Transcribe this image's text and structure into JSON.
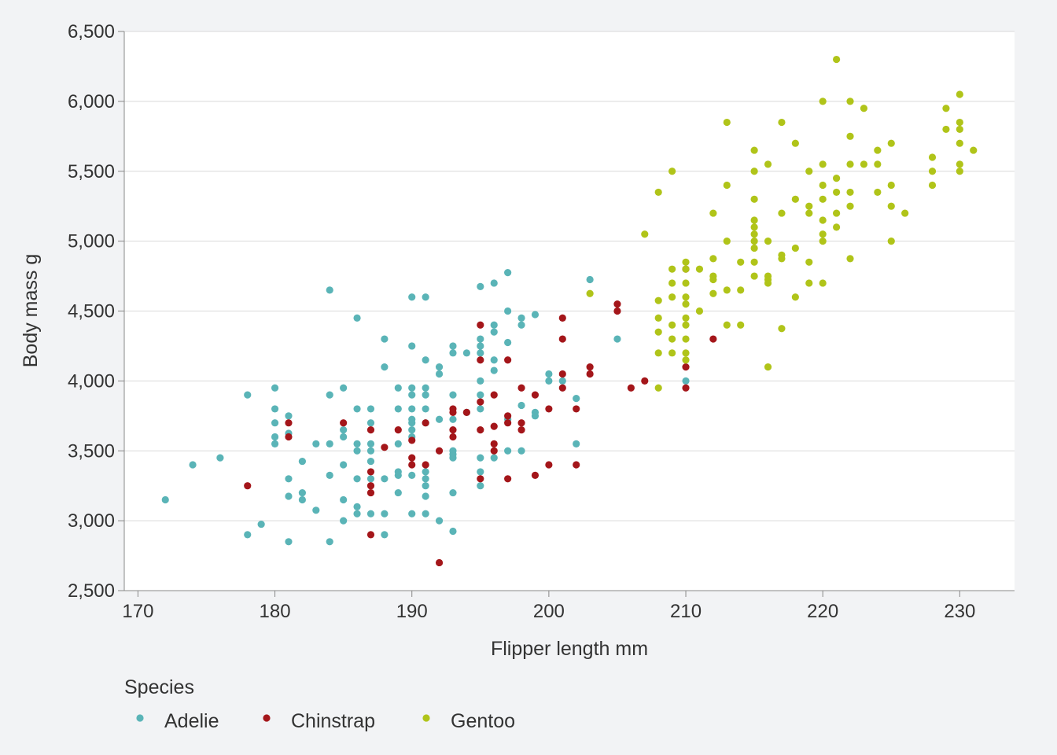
{
  "chart_data": {
    "type": "scatter",
    "xlabel": "Flipper length mm",
    "ylabel": "Body mass g",
    "xlim": [
      169,
      234
    ],
    "ylim": [
      2500,
      6500
    ],
    "x_ticks": [
      170,
      180,
      190,
      200,
      210,
      220,
      230
    ],
    "x_tick_labels": [
      "170",
      "180",
      "190",
      "200",
      "210",
      "220",
      "230"
    ],
    "y_ticks": [
      2500,
      3000,
      3500,
      4000,
      4500,
      5000,
      5500,
      6000,
      6500
    ],
    "y_tick_labels": [
      "2,500",
      "3,000",
      "3,500",
      "4,000",
      "4,500",
      "5,000",
      "5,500",
      "6,000",
      "6,500"
    ],
    "grid": "horizontal",
    "legend": {
      "title": "Species",
      "placement": "bottom-left"
    },
    "series": [
      {
        "name": "Adelie",
        "color": "#5ab4b7",
        "points": [
          [
            172,
            3150
          ],
          [
            174,
            3400
          ],
          [
            176,
            3450
          ],
          [
            178,
            3900
          ],
          [
            178,
            2900
          ],
          [
            179,
            2975
          ],
          [
            180,
            3950
          ],
          [
            180,
            3800
          ],
          [
            180,
            3700
          ],
          [
            180,
            3600
          ],
          [
            180,
            3550
          ],
          [
            181,
            3750
          ],
          [
            181,
            3625
          ],
          [
            181,
            3300
          ],
          [
            181,
            3175
          ],
          [
            181,
            2850
          ],
          [
            182,
            3425
          ],
          [
            182,
            3200
          ],
          [
            182,
            3150
          ],
          [
            183,
            3550
          ],
          [
            183,
            3075
          ],
          [
            184,
            4650
          ],
          [
            184,
            3900
          ],
          [
            184,
            3550
          ],
          [
            184,
            3325
          ],
          [
            184,
            2850
          ],
          [
            185,
            3950
          ],
          [
            185,
            3650
          ],
          [
            185,
            3600
          ],
          [
            185,
            3400
          ],
          [
            185,
            3150
          ],
          [
            185,
            3000
          ],
          [
            186,
            4450
          ],
          [
            186,
            3800
          ],
          [
            186,
            3550
          ],
          [
            186,
            3500
          ],
          [
            186,
            3300
          ],
          [
            186,
            3100
          ],
          [
            186,
            3050
          ],
          [
            187,
            3800
          ],
          [
            187,
            3700
          ],
          [
            187,
            3550
          ],
          [
            187,
            3500
          ],
          [
            187,
            3425
          ],
          [
            187,
            3300
          ],
          [
            187,
            3050
          ],
          [
            188,
            4300
          ],
          [
            188,
            4100
          ],
          [
            188,
            3300
          ],
          [
            188,
            3050
          ],
          [
            188,
            2900
          ],
          [
            189,
            3950
          ],
          [
            189,
            3800
          ],
          [
            189,
            3550
          ],
          [
            189,
            3350
          ],
          [
            189,
            3325
          ],
          [
            189,
            3200
          ],
          [
            190,
            4600
          ],
          [
            190,
            4250
          ],
          [
            190,
            3950
          ],
          [
            190,
            3900
          ],
          [
            190,
            3800
          ],
          [
            190,
            3725
          ],
          [
            190,
            3700
          ],
          [
            190,
            3650
          ],
          [
            190,
            3600
          ],
          [
            190,
            3325
          ],
          [
            190,
            3050
          ],
          [
            191,
            4600
          ],
          [
            191,
            4150
          ],
          [
            191,
            3950
          ],
          [
            191,
            3900
          ],
          [
            191,
            3800
          ],
          [
            191,
            3700
          ],
          [
            191,
            3350
          ],
          [
            191,
            3300
          ],
          [
            191,
            3250
          ],
          [
            191,
            3175
          ],
          [
            191,
            3050
          ],
          [
            192,
            4100
          ],
          [
            192,
            4050
          ],
          [
            192,
            3725
          ],
          [
            192,
            3000
          ],
          [
            193,
            4250
          ],
          [
            193,
            4200
          ],
          [
            193,
            3900
          ],
          [
            193,
            3725
          ],
          [
            193,
            3500
          ],
          [
            193,
            3475
          ],
          [
            193,
            3450
          ],
          [
            193,
            3200
          ],
          [
            193,
            2925
          ],
          [
            194,
            4200
          ],
          [
            194,
            3775
          ],
          [
            195,
            4675
          ],
          [
            195,
            4300
          ],
          [
            195,
            4250
          ],
          [
            195,
            4200
          ],
          [
            195,
            4000
          ],
          [
            195,
            3900
          ],
          [
            195,
            3800
          ],
          [
            195,
            3450
          ],
          [
            195,
            3350
          ],
          [
            195,
            3250
          ],
          [
            196,
            4700
          ],
          [
            196,
            4400
          ],
          [
            196,
            4350
          ],
          [
            196,
            4150
          ],
          [
            196,
            4075
          ],
          [
            196,
            3450
          ],
          [
            197,
            4775
          ],
          [
            197,
            4500
          ],
          [
            197,
            4275
          ],
          [
            197,
            3725
          ],
          [
            197,
            3500
          ],
          [
            198,
            4450
          ],
          [
            198,
            4400
          ],
          [
            198,
            3825
          ],
          [
            198,
            3500
          ],
          [
            199,
            4475
          ],
          [
            199,
            3775
          ],
          [
            199,
            3750
          ],
          [
            200,
            4050
          ],
          [
            200,
            4000
          ],
          [
            201,
            4000
          ],
          [
            202,
            3875
          ],
          [
            202,
            3550
          ],
          [
            203,
            4725
          ],
          [
            205,
            4300
          ],
          [
            210,
            4000
          ]
        ]
      },
      {
        "name": "Chinstrap",
        "color": "#a4161a",
        "points": [
          [
            178,
            3250
          ],
          [
            181,
            3700
          ],
          [
            181,
            3600
          ],
          [
            185,
            3700
          ],
          [
            187,
            3650
          ],
          [
            187,
            3350
          ],
          [
            187,
            3250
          ],
          [
            187,
            3200
          ],
          [
            187,
            2900
          ],
          [
            188,
            3525
          ],
          [
            189,
            3650
          ],
          [
            190,
            3575
          ],
          [
            190,
            3450
          ],
          [
            190,
            3400
          ],
          [
            191,
            3700
          ],
          [
            191,
            3400
          ],
          [
            192,
            3500
          ],
          [
            192,
            2700
          ],
          [
            193,
            3800
          ],
          [
            193,
            3775
          ],
          [
            193,
            3650
          ],
          [
            193,
            3600
          ],
          [
            194,
            3775
          ],
          [
            195,
            4400
          ],
          [
            195,
            4150
          ],
          [
            195,
            3850
          ],
          [
            195,
            3650
          ],
          [
            195,
            3300
          ],
          [
            196,
            3900
          ],
          [
            196,
            3675
          ],
          [
            196,
            3550
          ],
          [
            196,
            3500
          ],
          [
            197,
            4150
          ],
          [
            197,
            3750
          ],
          [
            197,
            3700
          ],
          [
            197,
            3300
          ],
          [
            198,
            3950
          ],
          [
            198,
            3700
          ],
          [
            198,
            3650
          ],
          [
            199,
            3900
          ],
          [
            199,
            3325
          ],
          [
            200,
            3800
          ],
          [
            200,
            3400
          ],
          [
            201,
            4450
          ],
          [
            201,
            4300
          ],
          [
            201,
            4050
          ],
          [
            201,
            3950
          ],
          [
            202,
            3800
          ],
          [
            202,
            3400
          ],
          [
            203,
            4100
          ],
          [
            203,
            4050
          ],
          [
            205,
            4550
          ],
          [
            205,
            4500
          ],
          [
            206,
            3950
          ],
          [
            207,
            4000
          ],
          [
            210,
            4800
          ],
          [
            210,
            4100
          ],
          [
            210,
            3950
          ],
          [
            212,
            4300
          ]
        ]
      },
      {
        "name": "Gentoo",
        "color": "#b0c419",
        "points": [
          [
            203,
            4625
          ],
          [
            207,
            5050
          ],
          [
            208,
            5350
          ],
          [
            208,
            4575
          ],
          [
            208,
            4450
          ],
          [
            208,
            4350
          ],
          [
            208,
            4200
          ],
          [
            208,
            3950
          ],
          [
            209,
            5500
          ],
          [
            209,
            4800
          ],
          [
            209,
            4700
          ],
          [
            209,
            4600
          ],
          [
            209,
            4400
          ],
          [
            209,
            4300
          ],
          [
            209,
            4200
          ],
          [
            210,
            4850
          ],
          [
            210,
            4800
          ],
          [
            210,
            4700
          ],
          [
            210,
            4600
          ],
          [
            210,
            4550
          ],
          [
            210,
            4450
          ],
          [
            210,
            4400
          ],
          [
            210,
            4300
          ],
          [
            210,
            4200
          ],
          [
            210,
            4150
          ],
          [
            211,
            4800
          ],
          [
            211,
            4500
          ],
          [
            212,
            5200
          ],
          [
            212,
            4875
          ],
          [
            212,
            4750
          ],
          [
            212,
            4725
          ],
          [
            212,
            4625
          ],
          [
            213,
            5850
          ],
          [
            213,
            5400
          ],
          [
            213,
            5000
          ],
          [
            213,
            4650
          ],
          [
            213,
            4400
          ],
          [
            214,
            4850
          ],
          [
            214,
            4650
          ],
          [
            214,
            4400
          ],
          [
            215,
            5650
          ],
          [
            215,
            5500
          ],
          [
            215,
            5300
          ],
          [
            215,
            5150
          ],
          [
            215,
            5100
          ],
          [
            215,
            5050
          ],
          [
            215,
            5000
          ],
          [
            215,
            4950
          ],
          [
            215,
            4850
          ],
          [
            215,
            4750
          ],
          [
            216,
            5550
          ],
          [
            216,
            5000
          ],
          [
            216,
            4750
          ],
          [
            216,
            4725
          ],
          [
            216,
            4700
          ],
          [
            216,
            4100
          ],
          [
            217,
            5850
          ],
          [
            217,
            5200
          ],
          [
            217,
            4900
          ],
          [
            217,
            4875
          ],
          [
            217,
            4375
          ],
          [
            218,
            5700
          ],
          [
            218,
            5300
          ],
          [
            218,
            4950
          ],
          [
            218,
            4600
          ],
          [
            219,
            5500
          ],
          [
            219,
            5250
          ],
          [
            219,
            5200
          ],
          [
            219,
            4850
          ],
          [
            219,
            4700
          ],
          [
            220,
            6000
          ],
          [
            220,
            5550
          ],
          [
            220,
            5400
          ],
          [
            220,
            5300
          ],
          [
            220,
            5150
          ],
          [
            220,
            5050
          ],
          [
            220,
            5000
          ],
          [
            220,
            4700
          ],
          [
            221,
            6300
          ],
          [
            221,
            5450
          ],
          [
            221,
            5350
          ],
          [
            221,
            5200
          ],
          [
            221,
            5100
          ],
          [
            222,
            6000
          ],
          [
            222,
            5750
          ],
          [
            222,
            5550
          ],
          [
            222,
            5350
          ],
          [
            222,
            5250
          ],
          [
            222,
            4875
          ],
          [
            223,
            5950
          ],
          [
            223,
            5550
          ],
          [
            224,
            5650
          ],
          [
            224,
            5550
          ],
          [
            224,
            5350
          ],
          [
            225,
            5700
          ],
          [
            225,
            5400
          ],
          [
            225,
            5250
          ],
          [
            225,
            5000
          ],
          [
            226,
            5200
          ],
          [
            228,
            5600
          ],
          [
            228,
            5500
          ],
          [
            228,
            5400
          ],
          [
            229,
            5950
          ],
          [
            229,
            5800
          ],
          [
            230,
            6050
          ],
          [
            230,
            5850
          ],
          [
            230,
            5800
          ],
          [
            230,
            5700
          ],
          [
            230,
            5550
          ],
          [
            230,
            5500
          ],
          [
            231,
            5650
          ]
        ]
      }
    ]
  }
}
